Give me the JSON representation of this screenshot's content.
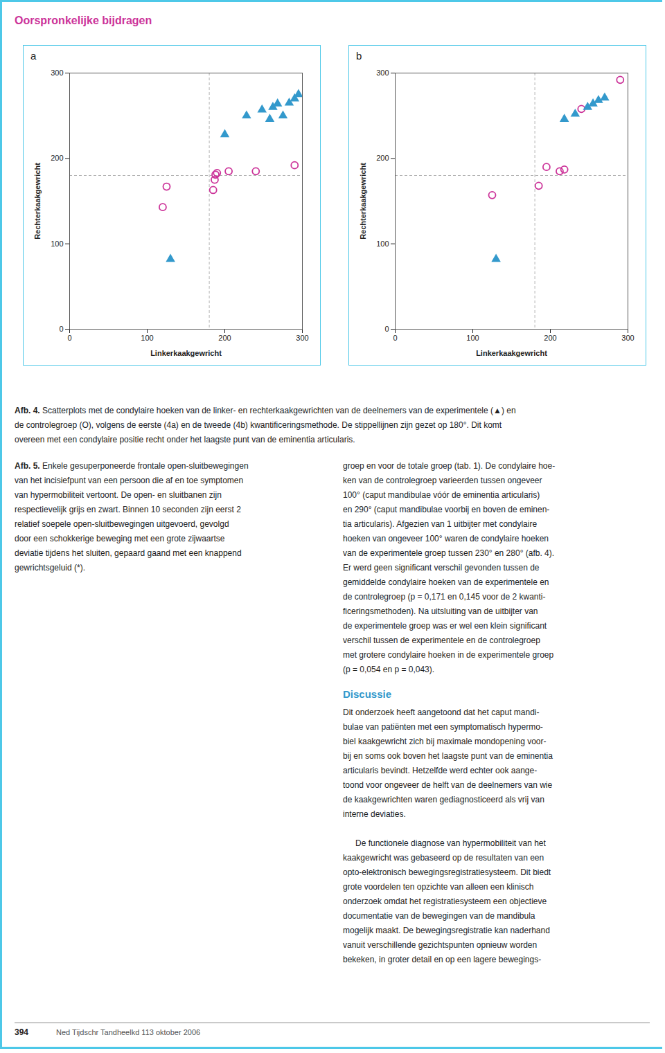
{
  "title": "Oorspronkelijke bijdragen",
  "chart_data": [
    {
      "type": "scatter",
      "title": "a",
      "xlabel": "Linkerkaakgewricht",
      "ylabel": "Rechterkaakgewricht",
      "xlim": [
        0,
        300
      ],
      "ylim": [
        0,
        300
      ],
      "xticks": [
        0,
        100,
        200,
        300
      ],
      "yticks": [
        0,
        100,
        200,
        300
      ],
      "grid": false,
      "series": [
        {
          "marker": "circle",
          "color": "#cc3399",
          "x": [
            120,
            125,
            185,
            187,
            188,
            190,
            205,
            240,
            290
          ],
          "y": [
            143,
            167,
            163,
            175,
            181,
            183,
            185,
            185,
            192
          ]
        },
        {
          "marker": "triangle",
          "color": "#3399cc",
          "x": [
            130,
            200,
            228,
            248,
            258,
            262,
            268,
            275,
            283,
            290,
            295
          ],
          "y": [
            82,
            228,
            250,
            257,
            246,
            260,
            264,
            250,
            265,
            270,
            275
          ]
        }
      ],
      "annotations": [
        {
          "type": "hline",
          "value": 180,
          "line_style": "dashed",
          "color": "#aaaaaa"
        },
        {
          "type": "vline",
          "value": 180,
          "line_style": "dashed",
          "color": "#aaaaaa"
        }
      ]
    },
    {
      "type": "scatter",
      "title": "b",
      "xlabel": "Linkerkaakgewricht",
      "ylabel": "Rechterkaakgewricht",
      "xlim": [
        0,
        300
      ],
      "ylim": [
        0,
        300
      ],
      "xticks": [
        0,
        100,
        200,
        300
      ],
      "yticks": [
        0,
        100,
        200,
        300
      ],
      "grid": false,
      "series": [
        {
          "marker": "circle",
          "color": "#cc3399",
          "x": [
            125,
            185,
            195,
            212,
            218,
            240,
            290
          ],
          "y": [
            157,
            168,
            190,
            185,
            187,
            258,
            292
          ]
        },
        {
          "marker": "triangle",
          "color": "#3399cc",
          "x": [
            130,
            218,
            232,
            248,
            255,
            262,
            270
          ],
          "y": [
            82,
            246,
            252,
            260,
            264,
            268,
            271
          ]
        }
      ],
      "annotations": [
        {
          "type": "hline",
          "value": 180,
          "line_style": "dashed",
          "color": "#aaaaaa"
        },
        {
          "type": "vline",
          "value": 180,
          "line_style": "dashed",
          "color": "#aaaaaa"
        }
      ]
    }
  ],
  "annotations": [
    {
      "title": "Afb. 4.",
      "lines": [
        "Scatterplots met de condylaire hoeken van de linker- en rechterkaakgewrichten van de deelnemers van de experimentele (▲) en",
        "de controlegroep (O), volgens de eerste (4a) en de tweede (4b) kwantificeringsmethode. De stippellijnen zijn gezet op 180°. Dit komt",
        "overeen met een condylaire positie recht onder het laagste punt van de eminentia articularis."
      ]
    },
    {
      "title": "Afb. 5.",
      "lines": [
        "Enkele gesuperponeerde frontale open-sluitbewegingen",
        "van het incisiefpunt van een persoon die af en toe symptomen",
        "van hypermobiliteit vertoont. De open- en sluitbanen zijn",
        "respectievelijk grijs en zwart. Binnen 10 seconden zijn eerst 2",
        "relatief soepele open-sluitbewegingen uitgevoerd, gevolgd",
        "door een schokkerige beweging met een grote zijwaartse",
        "deviatie tijdens het sluiten, gepaard gaand met een knappend",
        "gewrichtsgeluid (*)."
      ]
    },
    {
      "lines": [
        "groep en voor de totale groep (tab. 1). De condylaire hoe-",
        "ken van de controlegroep varieerden tussen ongeveer",
        "100° (caput mandibulae vóór de eminentia articularis)",
        "en 290° (caput mandibulae voorbij en boven de eminen-",
        "tia articularis). Afgezien van 1 uitbijter met condylaire",
        "hoeken van ongeveer 100° waren de condylaire hoeken",
        "van de experimentele groep tussen 230° en 280° (afb. 4).",
        "Er werd geen significant verschil gevonden tussen de",
        "gemiddelde condylaire hoeken van de experimentele en",
        "de controlegroep (p = 0,171 en 0,145 voor de 2 kwanti-",
        "ficeringsmethoden). Na uitsluiting van de uitbijter van",
        "de experimentele groep was er wel een klein significant",
        "verschil tussen de experimentele en de controlegroep",
        "met grotere condylaire hoeken in de experimentele groep",
        "(p = 0,054 en p = 0,043)."
      ]
    },
    {
      "title": "Discussie",
      "lines": [
        "Dit onderzoek heeft aangetoond dat het caput mandi-",
        "bulae van patiënten met een symptomatisch hypermo-",
        "biel kaakgewricht zich bij maximale mondopening voor-",
        "bij en soms ook boven het laagste punt van de eminentia",
        "articularis bevindt. Hetzelfde werd echter ook aange-",
        "toond voor ongeveer de helft van de deelnemers van wie",
        "de kaakgewrichten waren gediagnosticeerd als vrij van",
        "interne deviaties."
      ]
    },
    {
      "lines": [
        "De functionele diagnose van hypermobiliteit van het",
        "kaakgewricht was gebaseerd op de resultaten van een",
        "opto-elektronisch bewegingsregistratiesysteem. Dit biedt",
        "grote voordelen ten opzichte van alleen een klinisch",
        "onderzoek omdat het registratiesysteem een objectieve",
        "documentatie van de bewegingen van de mandibula",
        "mogelijk maakt. De bewegingsregistratie kan naderhand",
        "vanuit verschillende gezichtspunten opnieuw worden",
        "bekeken, in groter detail en op een lagere bewegings-"
      ]
    },
    {
      "title": "394",
      "lines": [
        "Ned Tijdschr Tandheelkd 113   oktober 2006"
      ]
    }
  ]
}
